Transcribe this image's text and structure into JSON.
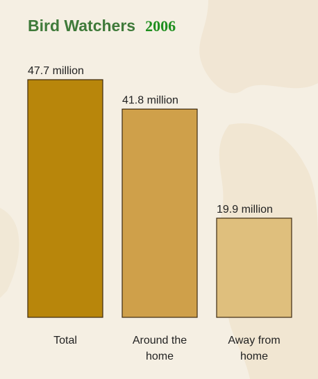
{
  "chart_data": {
    "type": "bar",
    "title": "Bird Watchers",
    "subtitle": "2006",
    "categories": [
      [
        "Total"
      ],
      [
        "Around the",
        "home"
      ],
      [
        "Away from",
        "home"
      ]
    ],
    "values": [
      47.7,
      41.8,
      19.9
    ],
    "data_labels": [
      "47.7 million",
      "41.8 million",
      "19.9 million"
    ],
    "unit": "million",
    "ylim": [
      0,
      47.7
    ],
    "grid": false,
    "legend": "none"
  },
  "colors": {
    "bars": [
      "#b8860b",
      "#cfa04a",
      "#dfbf7d"
    ],
    "bar_stroke": "#3d2a10",
    "title": "#3f7a3a",
    "subtitle": "#1f8f1f",
    "background": "#f5efe3"
  }
}
